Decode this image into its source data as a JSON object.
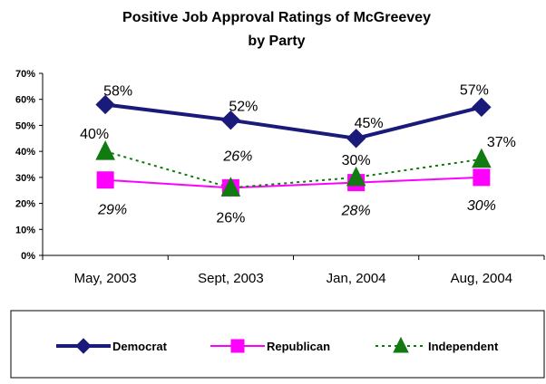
{
  "chart_data": {
    "type": "line",
    "title": "Positive Job Approval Ratings of McGreevey",
    "subtitle": "by Party",
    "categories": [
      "May, 2003",
      "Sept, 2003",
      "Jan, 2004",
      "Aug, 2004"
    ],
    "ylim": [
      0,
      70
    ],
    "yticks": [
      "0%",
      "10%",
      "20%",
      "30%",
      "40%",
      "50%",
      "60%",
      "70%"
    ],
    "xlabel": "",
    "ylabel": "",
    "grid": false,
    "legend_position": "bottom",
    "series": [
      {
        "name": "Democrat",
        "values": [
          58,
          52,
          45,
          57
        ],
        "labels": [
          "58%",
          "52%",
          "45%",
          "57%"
        ],
        "color": "#1a1a7a",
        "marker": "diamond",
        "line": "solid",
        "italic": false
      },
      {
        "name": "Republican",
        "values": [
          29,
          26,
          28,
          30
        ],
        "labels": [
          "29%",
          "26%",
          "28%",
          "30%"
        ],
        "color": "#ff00ff",
        "marker": "square",
        "line": "solid",
        "italic": true
      },
      {
        "name": "Independent",
        "values": [
          40,
          26,
          30,
          37
        ],
        "labels": [
          "40%",
          "26%",
          "30%",
          "37%"
        ],
        "color": "#117a11",
        "marker": "triangle",
        "line": "dotted",
        "italic": false
      }
    ]
  }
}
